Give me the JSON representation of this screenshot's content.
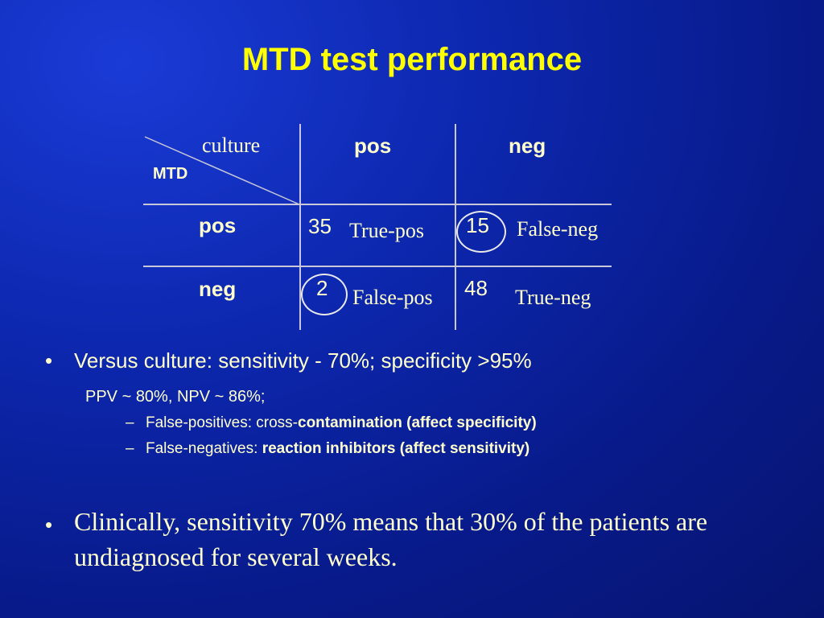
{
  "title": "MTD test performance",
  "table": {
    "corner_top": "culture",
    "corner_bottom": "MTD",
    "col_headers": [
      "pos",
      "neg"
    ],
    "row_headers": [
      "pos",
      "neg"
    ],
    "cells": [
      [
        {
          "value": "35",
          "label": "True-pos",
          "circled": false
        },
        {
          "value": "15",
          "label": "False-neg",
          "circled": true
        }
      ],
      [
        {
          "value": "2",
          "label": "False-pos",
          "circled": true
        },
        {
          "value": "48",
          "label": "True-neg",
          "circled": false
        }
      ]
    ]
  },
  "bullets": {
    "b1_text": "Versus culture: sensitivity - 70%; specificity >95%",
    "b1_sub": "PPV ~ 80%,   NPV ~ 86%;",
    "sub1_prefix": "False-positives: cross-",
    "sub1_bold": "contamination (affect specificity)",
    "sub2_prefix": "False-negatives: ",
    "sub2_bold": "reaction inhibitors (affect sensitivity)",
    "b2_text": "Clinically, sensitivity 70% means that 30% of the patients are undiagnosed for several weeks.",
    "bullet_char": "•",
    "dash_char": "–"
  }
}
